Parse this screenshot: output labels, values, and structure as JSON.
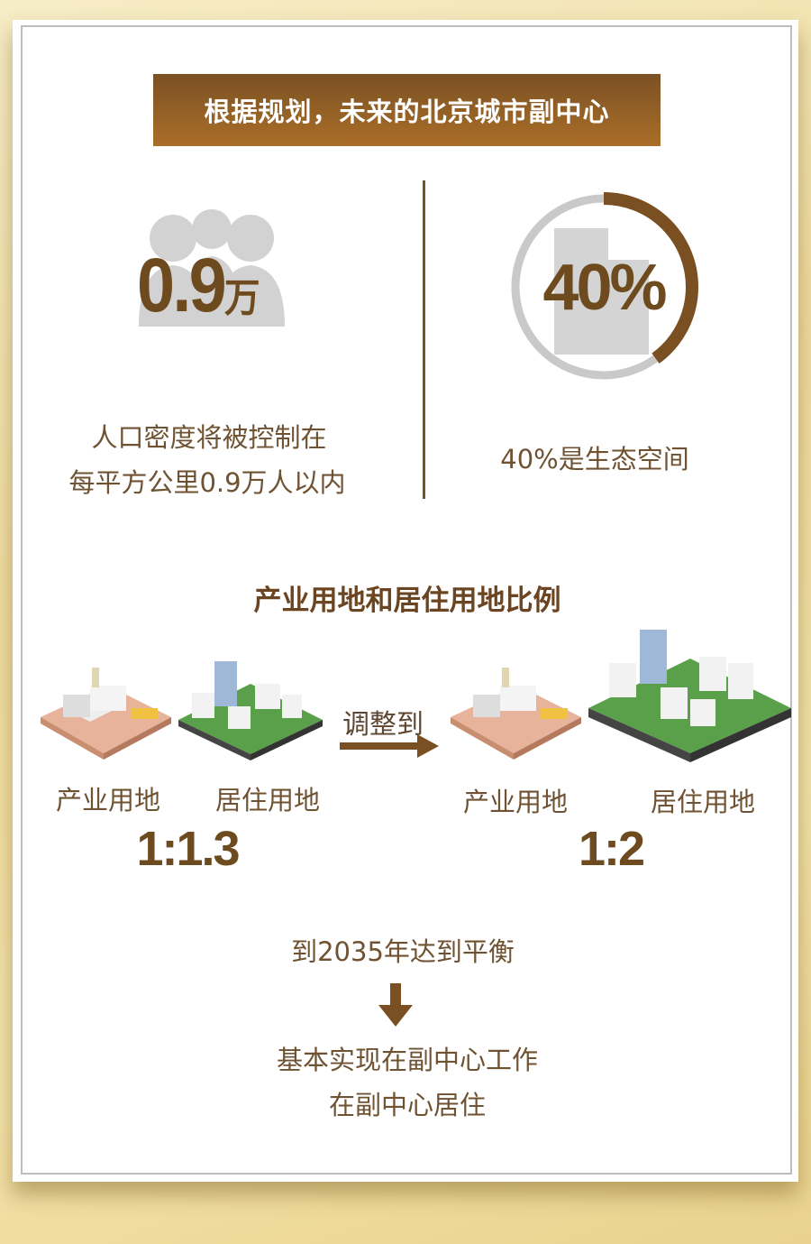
{
  "banner": {
    "title": "根据规划，未来的北京城市副中心"
  },
  "density": {
    "value": "0.9",
    "unit": "万",
    "line1": "人口密度将被控制在",
    "line2": "每平方公里0.9万人以内",
    "icon": "people-icon"
  },
  "ecology": {
    "value": "40%",
    "caption": "40%是生态空间",
    "progress_percent": 40,
    "icon": "building-icon",
    "colors": {
      "arc": "#7a4f22",
      "ring": "#c9c9c9"
    }
  },
  "ratio_section": {
    "heading": "产业用地和居住用地比例",
    "arrow_label": "调整到",
    "before": {
      "industrial_label": "产业用地",
      "residential_label": "居住用地",
      "ratio": "1:1.3"
    },
    "after": {
      "industrial_label": "产业用地",
      "residential_label": "居住用地",
      "ratio": "1:2"
    }
  },
  "outcome": {
    "line1": "到2035年达到平衡",
    "line2": "基本实现在副中心工作",
    "line3": "在副中心居住"
  },
  "colors": {
    "brown": "#7a4f22",
    "text": "#6f5232",
    "background": "#f0dfa6"
  }
}
